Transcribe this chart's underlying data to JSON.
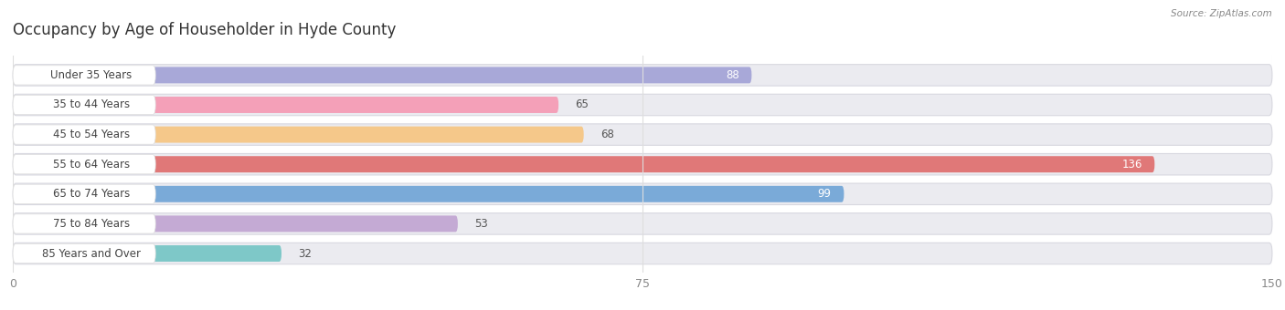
{
  "title": "Occupancy by Age of Householder in Hyde County",
  "source": "Source: ZipAtlas.com",
  "categories": [
    "Under 35 Years",
    "35 to 44 Years",
    "45 to 54 Years",
    "55 to 64 Years",
    "65 to 74 Years",
    "75 to 84 Years",
    "85 Years and Over"
  ],
  "values": [
    88,
    65,
    68,
    136,
    99,
    53,
    32
  ],
  "bar_colors": [
    "#a8a8d8",
    "#f4a0b8",
    "#f5c88a",
    "#e07878",
    "#7aaad8",
    "#c4aad4",
    "#7ec8c8"
  ],
  "bar_bg_color": "#ebebf0",
  "bar_bg_border_color": "#d8d8e0",
  "label_bg_color": "#ffffff",
  "xlim": [
    0,
    150
  ],
  "xticks": [
    0,
    75,
    150
  ],
  "label_fontsize": 8.5,
  "value_fontsize": 8.5,
  "title_fontsize": 12,
  "background_color": "#ffffff",
  "bar_height": 0.55,
  "bg_bar_height": 0.72,
  "value_inside_color": "#ffffff",
  "value_outside_color": "#555555",
  "title_color": "#333333",
  "label_text_color": "#444444",
  "tick_color": "#888888",
  "grid_color": "#dddddd"
}
